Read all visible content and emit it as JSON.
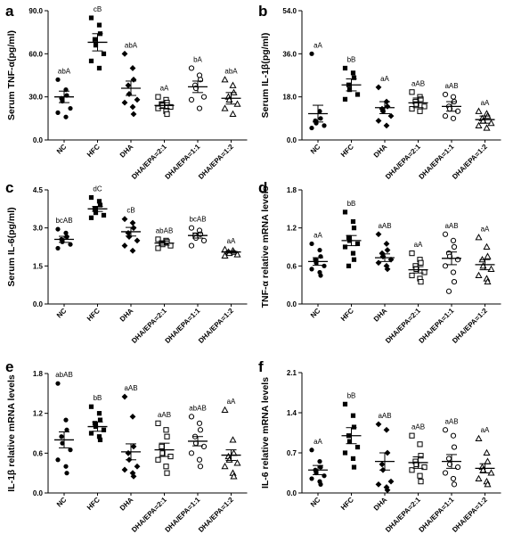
{
  "chart_data": [
    {
      "type": "scatter",
      "panel": "a",
      "ylabel": "Serum TNF-α(pg/ml)",
      "ylim": [
        0,
        90
      ],
      "yticks": [
        "0.0",
        "30.0",
        "60.0",
        "90.0"
      ],
      "categories": [
        "NC",
        "HFC",
        "DHA",
        "DHA/EPA=2:1",
        "DHA/EPA=1:1",
        "DHA/EPA=1:2"
      ],
      "markers": [
        "circle-filled",
        "square-filled",
        "diamond-filled",
        "square-open",
        "circle-open",
        "triangle-open"
      ],
      "labels": [
        "abA",
        "cB",
        "abA",
        "aA",
        "bA",
        "abA"
      ],
      "means": [
        30,
        68,
        36,
        24,
        37,
        29
      ],
      "sem": [
        4,
        6,
        5,
        2,
        4,
        4
      ],
      "points": [
        [
          42,
          35,
          31,
          29,
          27,
          22,
          19,
          16
        ],
        [
          85,
          80,
          74,
          70,
          66,
          60,
          55,
          50
        ],
        [
          60,
          50,
          42,
          38,
          32,
          28,
          26,
          23,
          18
        ],
        [
          30,
          28,
          26,
          25,
          24,
          23,
          22,
          20,
          18
        ],
        [
          50,
          45,
          42,
          38,
          36,
          30,
          28,
          22
        ],
        [
          42,
          38,
          33,
          30,
          28,
          25,
          22,
          18
        ]
      ]
    },
    {
      "type": "scatter",
      "panel": "b",
      "ylabel": "Serum IL-1β(pg/ml)",
      "ylim": [
        0,
        54
      ],
      "yticks": [
        "0.0",
        "18.0",
        "36.0",
        "54.0"
      ],
      "categories": [
        "NC",
        "HFC",
        "DHA",
        "DHA/EPA=2:1",
        "DHA/EPA=1:1",
        "DHA/EPA=1:2"
      ],
      "markers": [
        "circle-filled",
        "square-filled",
        "diamond-filled",
        "square-open",
        "circle-open",
        "triangle-open"
      ],
      "labels": [
        "aA",
        "bB",
        "aA",
        "aAB",
        "aAB",
        "aA"
      ],
      "means": [
        11,
        23,
        13.5,
        15.5,
        14,
        8.5
      ],
      "sem": [
        3.5,
        2.5,
        2.5,
        2,
        2,
        1.5
      ],
      "points": [
        [
          36,
          12,
          9,
          8,
          7,
          6,
          5
        ],
        [
          30,
          28,
          26,
          23,
          21,
          19,
          17
        ],
        [
          22,
          16,
          14,
          13,
          12,
          10,
          8,
          6
        ],
        [
          20,
          18,
          17,
          16,
          15,
          14,
          13,
          12
        ],
        [
          19,
          18,
          16,
          14,
          13,
          12,
          10,
          9
        ],
        [
          12,
          11,
          10,
          9,
          8,
          7,
          6,
          5
        ]
      ]
    },
    {
      "type": "scatter",
      "panel": "c",
      "ylabel": "Serum IL-6(pg/ml)",
      "ylim": [
        0,
        4.5
      ],
      "yticks": [
        "0.0",
        "1.5",
        "3.0",
        "4.5"
      ],
      "categories": [
        "NC",
        "HFC",
        "DHA",
        "DHA/EPA=2:1",
        "DHA/EPA=1:1",
        "DHA/EPA=1:2"
      ],
      "markers": [
        "circle-filled",
        "square-filled",
        "diamond-filled",
        "square-open",
        "circle-open",
        "triangle-open"
      ],
      "labels": [
        "bcAB",
        "dC",
        "cB",
        "abAB",
        "bcAB",
        "aA"
      ],
      "means": [
        2.55,
        3.75,
        2.85,
        2.4,
        2.7,
        2.05
      ],
      "sem": [
        0.12,
        0.1,
        0.17,
        0.08,
        0.1,
        0.04
      ],
      "points": [
        [
          2.95,
          2.8,
          2.65,
          2.55,
          2.45,
          2.35,
          2.2
        ],
        [
          4.2,
          4.05,
          3.9,
          3.75,
          3.6,
          3.5,
          3.4
        ],
        [
          3.35,
          3.2,
          3.0,
          2.8,
          2.65,
          2.5,
          2.3,
          2.1
        ],
        [
          2.55,
          2.5,
          2.45,
          2.4,
          2.35,
          2.3,
          2.2
        ],
        [
          3.0,
          2.9,
          2.75,
          2.7,
          2.6,
          2.5,
          2.3
        ],
        [
          2.15,
          2.1,
          2.05,
          2.05,
          2.0,
          1.95,
          1.9
        ]
      ]
    },
    {
      "type": "scatter",
      "panel": "d",
      "ylabel": "TNF-α relative mRNA levels",
      "ylim": [
        0,
        1.8
      ],
      "yticks": [
        "0.0",
        "0.6",
        "1.2",
        "1.8"
      ],
      "categories": [
        "NC",
        "HFC",
        "DHA",
        "DHA/EPA=2:1",
        "DHA/EPA=1:1",
        "DHA/EPA=1:2"
      ],
      "markers": [
        "circle-filled",
        "square-filled",
        "diamond-filled",
        "square-open",
        "circle-open",
        "triangle-open"
      ],
      "labels": [
        "aA",
        "bB",
        "aAB",
        "aA",
        "aAB",
        "aA"
      ],
      "means": [
        0.67,
        1.0,
        0.73,
        0.54,
        0.72,
        0.62
      ],
      "sem": [
        0.06,
        0.08,
        0.06,
        0.05,
        0.1,
        0.08
      ],
      "points": [
        [
          0.95,
          0.85,
          0.75,
          0.7,
          0.65,
          0.6,
          0.55,
          0.5,
          0.45
        ],
        [
          1.45,
          1.3,
          1.2,
          1.05,
          1.0,
          0.95,
          0.9,
          0.8,
          0.7,
          0.6
        ],
        [
          1.1,
          0.95,
          0.85,
          0.8,
          0.75,
          0.7,
          0.65,
          0.6,
          0.55
        ],
        [
          0.8,
          0.7,
          0.65,
          0.6,
          0.55,
          0.5,
          0.45,
          0.4,
          0.35
        ],
        [
          1.1,
          1.0,
          0.9,
          0.8,
          0.75,
          0.7,
          0.6,
          0.5,
          0.35,
          0.2
        ],
        [
          1.05,
          0.9,
          0.75,
          0.7,
          0.6,
          0.55,
          0.45,
          0.4,
          0.35
        ]
      ]
    },
    {
      "type": "scatter",
      "panel": "e",
      "ylabel": "IL-1β relative mRNA levels",
      "ylim": [
        0,
        1.8
      ],
      "yticks": [
        "0.0",
        "0.6",
        "1.2",
        "1.8"
      ],
      "categories": [
        "NC",
        "HFC",
        "DHA",
        "DHA/EPA=2:1",
        "DHA/EPA=1:1",
        "DHA/EPA=1:2"
      ],
      "markers": [
        "circle-filled",
        "square-filled",
        "diamond-filled",
        "square-open",
        "circle-open",
        "triangle-open"
      ],
      "labels": [
        "abAB",
        "bB",
        "aAB",
        "aAB",
        "abAB",
        "aA"
      ],
      "means": [
        0.8,
        1.0,
        0.62,
        0.65,
        0.78,
        0.57
      ],
      "sem": [
        0.12,
        0.07,
        0.12,
        0.1,
        0.07,
        0.08
      ],
      "points": [
        [
          1.65,
          1.1,
          0.95,
          0.85,
          0.75,
          0.65,
          0.5,
          0.4,
          0.3
        ],
        [
          1.3,
          1.2,
          1.1,
          1.05,
          1.0,
          0.95,
          0.9,
          0.85,
          0.8
        ],
        [
          1.45,
          1.15,
          0.7,
          0.6,
          0.5,
          0.4,
          0.35,
          0.3,
          0.25
        ],
        [
          1.05,
          0.95,
          0.85,
          0.7,
          0.6,
          0.55,
          0.5,
          0.4,
          0.3
        ],
        [
          1.15,
          1.05,
          0.95,
          0.85,
          0.75,
          0.7,
          0.6,
          0.5,
          0.4
        ],
        [
          1.25,
          0.8,
          0.6,
          0.55,
          0.5,
          0.45,
          0.4,
          0.3,
          0.25
        ]
      ]
    },
    {
      "type": "scatter",
      "panel": "f",
      "ylabel": "IL-6 relative mRNA levels",
      "ylim": [
        0,
        2.1
      ],
      "yticks": [
        "0.0",
        "0.7",
        "1.4",
        "2.1"
      ],
      "categories": [
        "NC",
        "HFC",
        "DHA",
        "DHA/EPA=2:1",
        "DHA/EPA=1:1",
        "DHA/EPA=1:2"
      ],
      "markers": [
        "circle-filled",
        "square-filled",
        "diamond-filled",
        "square-open",
        "circle-open",
        "triangle-open"
      ],
      "labels": [
        "aA",
        "bB",
        "aAB",
        "aAB",
        "aAB",
        "aA"
      ],
      "means": [
        0.4,
        1.0,
        0.55,
        0.53,
        0.55,
        0.43
      ],
      "sem": [
        0.08,
        0.14,
        0.15,
        0.1,
        0.12,
        0.08
      ],
      "points": [
        [
          0.75,
          0.55,
          0.45,
          0.4,
          0.35,
          0.3,
          0.25,
          0.2,
          0.15
        ],
        [
          1.55,
          1.35,
          1.15,
          1.0,
          0.9,
          0.8,
          0.7,
          0.6,
          0.45
        ],
        [
          1.2,
          1.1,
          0.7,
          0.5,
          0.4,
          0.2,
          0.15,
          0.1,
          0.05
        ],
        [
          1.0,
          0.85,
          0.65,
          0.55,
          0.5,
          0.45,
          0.4,
          0.3,
          0.2
        ],
        [
          1.1,
          1.0,
          0.8,
          0.6,
          0.5,
          0.45,
          0.35,
          0.25,
          0.15
        ],
        [
          0.95,
          0.7,
          0.55,
          0.45,
          0.4,
          0.35,
          0.25,
          0.2,
          0.15
        ]
      ]
    }
  ]
}
